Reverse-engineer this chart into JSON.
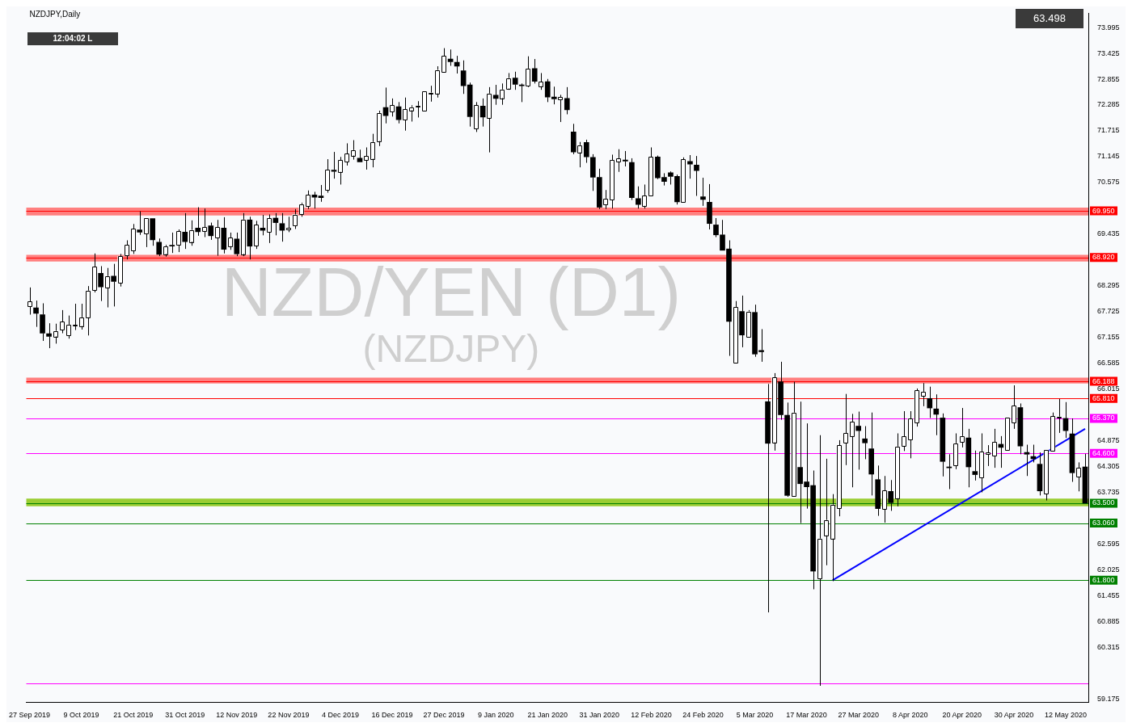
{
  "chart_data": {
    "type": "candlestick",
    "title": "NZD/YEN (D1)",
    "subtitle": "(NZDJPY)",
    "annotations": [
      "NZDJPY,Daily",
      "12:04:02 L",
      "63.498"
    ],
    "colors": [
      "#ffffff",
      "#000000",
      "#000000",
      "#000000",
      "#ffffff",
      "#ffffff",
      "#ffffff",
      "#ffffff",
      "#ffffff",
      "#ffffff",
      "#ffffff",
      "#000000",
      "#ffffff",
      "#000000",
      "#ffffff",
      "#ffffff",
      "#ffffff",
      "#000000",
      "#ffffff",
      "#000000",
      "#000000",
      "#ffffff",
      "#000000",
      "#ffffff",
      "#000000",
      "#ffffff",
      "#000000",
      "#ffffff",
      "#000000",
      "#ffffff",
      "#000000",
      "#ffffff",
      "#000000",
      "#ffffff",
      "#000000",
      "#ffffff",
      "#000000",
      "#ffffff",
      "#000000",
      "#000000",
      "#ffffff",
      "#ffffff",
      "#ffffff",
      "#ffffff",
      "#000000",
      "#000000",
      "#ffffff",
      "#000000",
      "#ffffff",
      "#ffffff",
      "#ffffff",
      "#000000",
      "#ffffff",
      "#ffffff",
      "#ffffff",
      "#000000",
      "#ffffff",
      "#000000",
      "#ffffff",
      "#ffffff",
      "#ffffff",
      "#ffffff",
      "#ffffff",
      "#ffffff",
      "#ffffff",
      "#000000",
      "#000000",
      "#000000",
      "#000000",
      "#ffffff",
      "#000000",
      "#ffffff",
      "#000000",
      "#ffffff",
      "#ffffff",
      "#000000",
      "#000000",
      "#ffffff",
      "#000000",
      "#ffffff",
      "#000000",
      "#000000",
      "#ffffff",
      "#000000",
      "#000000",
      "#ffffff",
      "#000000",
      "#000000",
      "#000000",
      "#ffffff",
      "#ffffff",
      "#ffffff",
      "#000000",
      "#000000",
      "#000000",
      "#ffffff",
      "#ffffff",
      "#000000",
      "#000000",
      "#000000",
      "#000000",
      "#ffffff",
      "#000000",
      "#000000",
      "#000000",
      "#000000",
      "#000000",
      "#000000",
      "#000000",
      "#ffffff",
      "#000000",
      "#ffffff",
      "#000000",
      "#000000",
      "#000000",
      "#ffffff",
      "#000000",
      "#000000",
      "#ffffff",
      "#000000",
      "#000000",
      "#000000",
      "#ffffff",
      "#ffffff",
      "#ffffff",
      "#ffffff",
      "#ffffff",
      "#ffffff",
      "#000000",
      "#000000",
      "#000000",
      "#000000",
      "#ffffff",
      "#000000",
      "#ffffff",
      "#ffffff",
      "#ffffff",
      "#ffffff",
      "#ffffff",
      "#000000",
      "#000000",
      "#000000",
      "#000000",
      "#ffffff",
      "#ffffff",
      "#000000",
      "#000000",
      "#ffffff",
      "#ffffff",
      "#ffffff",
      "#000000",
      "#ffffff",
      "#ffffff",
      "#000000",
      "#000000",
      "#000000",
      "#000000",
      "#ffffff",
      "#ffffff",
      "#ffffff",
      "#000000",
      "#000000",
      "#ffffff",
      "#000000"
    ],
    "categories": [
      "27 Sep 2019",
      null,
      null,
      null,
      null,
      null,
      null,
      null,
      "9 Oct 2019",
      null,
      null,
      null,
      null,
      null,
      null,
      null,
      "21 Oct 2019",
      null,
      null,
      null,
      null,
      null,
      null,
      null,
      "31 Oct 2019",
      null,
      null,
      null,
      null,
      null,
      null,
      null,
      "12 Nov 2019",
      null,
      null,
      null,
      null,
      null,
      null,
      null,
      "22 Nov 2019",
      null,
      null,
      null,
      null,
      null,
      null,
      null,
      "4 Dec 2019",
      null,
      null,
      null,
      null,
      null,
      null,
      null,
      "16 Dec 2019",
      null,
      null,
      null,
      null,
      null,
      null,
      null,
      "27 Dec 2019",
      null,
      null,
      null,
      null,
      null,
      null,
      null,
      "9 Jan 2020",
      null,
      null,
      null,
      null,
      null,
      null,
      null,
      "21 Jan 2020",
      null,
      null,
      null,
      null,
      null,
      null,
      null,
      "31 Jan 2020",
      null,
      null,
      null,
      null,
      null,
      null,
      null,
      "12 Feb 2020",
      null,
      null,
      null,
      null,
      null,
      null,
      null,
      "24 Feb 2020",
      null,
      null,
      null,
      null,
      null,
      null,
      null,
      "5 Mar 2020",
      null,
      null,
      null,
      null,
      null,
      null,
      null,
      "17 Mar 2020",
      null,
      null,
      null,
      null,
      null,
      null,
      null,
      "27 Mar 2020",
      null,
      null,
      null,
      null,
      null,
      null,
      null,
      "8 Apr 2020",
      null,
      null,
      null,
      null,
      null,
      null,
      null,
      "20 Apr 2020",
      null,
      null,
      null,
      null,
      null,
      null,
      null,
      "30 Apr 2020",
      null,
      null,
      null,
      null,
      null,
      null,
      null,
      "12 May 2020",
      null,
      null,
      null
    ],
    "ohlc": [
      [
        67.84,
        68.26,
        67.66,
        67.95
      ],
      [
        67.81,
        67.97,
        67.39,
        67.69
      ],
      [
        67.66,
        67.91,
        67.08,
        67.25
      ],
      [
        67.24,
        67.47,
        66.92,
        67.18
      ],
      [
        67.18,
        67.46,
        67.02,
        67.3
      ],
      [
        67.33,
        67.76,
        67.25,
        67.5
      ],
      [
        67.2,
        67.64,
        67.13,
        67.44
      ],
      [
        67.42,
        67.9,
        67.32,
        67.43
      ],
      [
        67.41,
        67.9,
        67.33,
        67.6
      ],
      [
        67.6,
        68.29,
        67.2,
        68.19
      ],
      [
        68.2,
        69.01,
        68.15,
        68.72
      ],
      [
        68.57,
        68.73,
        67.96,
        68.27
      ],
      [
        68.26,
        68.69,
        67.82,
        68.51
      ],
      [
        68.51,
        68.78,
        67.84,
        68.39
      ],
      [
        68.36,
        69.0,
        68.28,
        68.95
      ],
      [
        68.96,
        69.3,
        68.88,
        69.2
      ],
      [
        69.07,
        69.66,
        69.0,
        69.55
      ],
      [
        69.53,
        69.94,
        69.42,
        69.48
      ],
      [
        69.45,
        69.81,
        69.15,
        69.79
      ],
      [
        69.78,
        69.8,
        69.18,
        69.31
      ],
      [
        69.26,
        69.34,
        68.95,
        68.99
      ],
      [
        69.0,
        69.2,
        68.94,
        69.17
      ],
      [
        69.19,
        69.47,
        69.02,
        69.17
      ],
      [
        69.2,
        69.54,
        69.04,
        69.5
      ],
      [
        69.48,
        69.9,
        69.11,
        69.27
      ],
      [
        69.27,
        69.74,
        69.18,
        69.53
      ],
      [
        69.57,
        70.03,
        69.4,
        69.49
      ],
      [
        69.5,
        70.0,
        69.37,
        69.59
      ],
      [
        69.62,
        69.69,
        69.31,
        69.4
      ],
      [
        69.36,
        69.75,
        68.96,
        69.59
      ],
      [
        69.57,
        69.81,
        69.01,
        69.1
      ],
      [
        69.17,
        69.47,
        69.09,
        69.36
      ],
      [
        69.33,
        69.47,
        68.95,
        69.0
      ],
      [
        69.0,
        69.9,
        68.95,
        69.76
      ],
      [
        69.75,
        69.82,
        68.88,
        69.17
      ],
      [
        69.17,
        69.73,
        69.11,
        69.64
      ],
      [
        69.57,
        69.86,
        69.41,
        69.52
      ],
      [
        69.48,
        69.87,
        69.24,
        69.79
      ],
      [
        69.79,
        69.9,
        69.41,
        69.69
      ],
      [
        69.67,
        69.9,
        69.27,
        69.52
      ],
      [
        69.53,
        69.82,
        69.48,
        69.57
      ],
      [
        69.63,
        69.99,
        69.55,
        69.87
      ],
      [
        69.88,
        70.13,
        69.82,
        70.1
      ],
      [
        70.05,
        70.4,
        69.99,
        70.3
      ],
      [
        70.3,
        70.37,
        70.0,
        70.25
      ],
      [
        70.28,
        70.52,
        70.15,
        70.24
      ],
      [
        70.41,
        71.09,
        70.35,
        70.86
      ],
      [
        70.85,
        71.25,
        70.66,
        70.82
      ],
      [
        70.81,
        71.14,
        70.53,
        71.07
      ],
      [
        71.03,
        71.44,
        70.95,
        71.21
      ],
      [
        71.17,
        71.51,
        71.08,
        71.29
      ],
      [
        71.11,
        71.3,
        71.03,
        71.03
      ],
      [
        71.07,
        71.35,
        70.86,
        71.16
      ],
      [
        71.1,
        71.65,
        70.91,
        71.47
      ],
      [
        71.49,
        72.16,
        71.38,
        72.11
      ],
      [
        72.23,
        72.67,
        71.88,
        72.05
      ],
      [
        72.14,
        72.43,
        72.03,
        72.28
      ],
      [
        72.25,
        72.35,
        71.88,
        71.96
      ],
      [
        71.95,
        72.45,
        71.72,
        72.19
      ],
      [
        72.17,
        72.28,
        71.92,
        72.24
      ],
      [
        72.26,
        72.37,
        72.01,
        72.27
      ],
      [
        72.16,
        72.59,
        72.16,
        72.59
      ],
      [
        72.55,
        72.71,
        72.36,
        72.56
      ],
      [
        72.54,
        73.14,
        72.45,
        73.06
      ],
      [
        73.02,
        73.54,
        73.0,
        73.37
      ],
      [
        73.3,
        73.51,
        73.15,
        73.24
      ],
      [
        73.23,
        73.37,
        72.98,
        73.14
      ],
      [
        73.04,
        73.27,
        72.53,
        72.71
      ],
      [
        72.73,
        72.78,
        71.81,
        72.03
      ],
      [
        71.76,
        72.35,
        71.69,
        72.28
      ],
      [
        72.26,
        72.43,
        71.81,
        72.02
      ],
      [
        72.0,
        72.68,
        71.24,
        72.54
      ],
      [
        72.5,
        72.73,
        72.29,
        72.43
      ],
      [
        72.44,
        72.76,
        72.29,
        72.63
      ],
      [
        72.65,
        72.99,
        72.62,
        72.88
      ],
      [
        72.88,
        73.02,
        72.62,
        72.74
      ],
      [
        72.73,
        72.76,
        72.35,
        72.71
      ],
      [
        72.71,
        73.36,
        72.68,
        73.09
      ],
      [
        73.09,
        73.3,
        72.76,
        72.81
      ],
      [
        72.7,
        72.99,
        72.62,
        72.8
      ],
      [
        72.8,
        72.86,
        72.35,
        72.46
      ],
      [
        72.46,
        72.69,
        72.3,
        72.42
      ],
      [
        72.41,
        72.51,
        71.91,
        72.46
      ],
      [
        72.43,
        72.68,
        72.08,
        72.18
      ],
      [
        71.69,
        71.87,
        71.2,
        71.25
      ],
      [
        71.24,
        71.47,
        70.91,
        71.4
      ],
      [
        71.46,
        71.52,
        71.01,
        71.14
      ],
      [
        71.13,
        71.2,
        70.39,
        70.69
      ],
      [
        70.69,
        70.88,
        69.99,
        70.03
      ],
      [
        70.09,
        70.41,
        69.99,
        70.22
      ],
      [
        70.19,
        71.19,
        70.0,
        71.07
      ],
      [
        71.04,
        71.31,
        70.81,
        71.11
      ],
      [
        71.07,
        71.27,
        70.93,
        71.05
      ],
      [
        71.02,
        71.11,
        70.19,
        70.24
      ],
      [
        70.22,
        70.49,
        70.0,
        70.09
      ],
      [
        70.06,
        70.53,
        70.0,
        70.29
      ],
      [
        70.28,
        71.35,
        70.26,
        71.14
      ],
      [
        71.14,
        71.17,
        70.65,
        70.68
      ],
      [
        70.69,
        70.78,
        70.51,
        70.6
      ],
      [
        70.79,
        70.82,
        70.53,
        70.71
      ],
      [
        70.71,
        70.75,
        70.09,
        70.15
      ],
      [
        70.15,
        71.13,
        70.13,
        71.09
      ],
      [
        71.04,
        71.18,
        70.66,
        70.98
      ],
      [
        70.96,
        71.16,
        70.28,
        70.84
      ],
      [
        70.26,
        70.68,
        70.06,
        70.2
      ],
      [
        70.14,
        70.54,
        69.54,
        69.67
      ],
      [
        69.64,
        69.79,
        69.37,
        69.42
      ],
      [
        69.42,
        69.75,
        69.08,
        69.08
      ],
      [
        69.11,
        69.3,
        66.75,
        67.51
      ],
      [
        66.6,
        67.96,
        66.58,
        67.83
      ],
      [
        67.73,
        68.08,
        66.94,
        67.21
      ],
      [
        67.18,
        67.76,
        67.17,
        67.73
      ],
      [
        67.71,
        67.88,
        66.73,
        66.79
      ],
      [
        66.87,
        67.34,
        66.62,
        66.84
      ],
      [
        65.74,
        66.13,
        61.09,
        64.82
      ],
      [
        64.84,
        66.37,
        64.66,
        66.28
      ],
      [
        66.18,
        66.62,
        65.34,
        65.45
      ],
      [
        65.44,
        65.72,
        63.64,
        63.67
      ],
      [
        63.66,
        66.18,
        63.64,
        65.5
      ],
      [
        64.29,
        65.74,
        63.06,
        63.93
      ],
      [
        63.97,
        65.26,
        63.38,
        63.86
      ],
      [
        63.89,
        64.22,
        61.6,
        62.0
      ],
      [
        61.84,
        65.0,
        59.47,
        62.72
      ],
      [
        62.79,
        64.48,
        62.13,
        63.13
      ],
      [
        62.72,
        63.7,
        61.78,
        63.47
      ],
      [
        63.39,
        64.89,
        63.21,
        64.78
      ],
      [
        64.82,
        65.91,
        64.34,
        65.04
      ],
      [
        64.98,
        65.47,
        63.85,
        65.3
      ],
      [
        65.2,
        65.52,
        64.24,
        65.1
      ],
      [
        64.92,
        65.2,
        64.47,
        64.83
      ],
      [
        64.7,
        65.5,
        63.67,
        64.14
      ],
      [
        64.02,
        64.33,
        63.22,
        63.38
      ],
      [
        63.37,
        64.1,
        63.07,
        63.78
      ],
      [
        63.76,
        64.01,
        63.33,
        63.51
      ],
      [
        63.61,
        65.04,
        63.43,
        64.75
      ],
      [
        64.75,
        65.53,
        64.65,
        64.97
      ],
      [
        64.9,
        65.53,
        64.49,
        65.37
      ],
      [
        65.28,
        66.03,
        65.19,
        65.99
      ],
      [
        65.87,
        66.15,
        65.64,
        65.96
      ],
      [
        65.81,
        66.07,
        65.38,
        65.6
      ],
      [
        65.58,
        65.9,
        65.0,
        65.46
      ],
      [
        65.38,
        65.48,
        64.09,
        64.42
      ],
      [
        64.3,
        64.58,
        63.81,
        64.28
      ],
      [
        64.33,
        65.04,
        64.25,
        64.82
      ],
      [
        64.85,
        65.6,
        64.73,
        64.98
      ],
      [
        64.94,
        65.14,
        63.85,
        64.3
      ],
      [
        64.2,
        64.66,
        64.0,
        64.13
      ],
      [
        64.06,
        65.04,
        63.74,
        64.63
      ],
      [
        64.58,
        64.78,
        64.32,
        64.62
      ],
      [
        64.54,
        65.14,
        64.28,
        64.85
      ],
      [
        64.8,
        64.98,
        64.28,
        64.73
      ],
      [
        64.67,
        65.39,
        64.65,
        65.38
      ],
      [
        65.28,
        66.1,
        65.14,
        65.65
      ],
      [
        65.61,
        65.7,
        64.58,
        64.76
      ],
      [
        64.62,
        64.79,
        64.1,
        64.58
      ],
      [
        64.53,
        64.79,
        64.4,
        64.48
      ],
      [
        64.36,
        64.62,
        63.67,
        63.77
      ],
      [
        63.71,
        64.68,
        63.56,
        64.68
      ],
      [
        64.66,
        65.5,
        64.65,
        65.42
      ],
      [
        65.39,
        65.8,
        65.05,
        65.41
      ],
      [
        65.37,
        65.73,
        64.94,
        65.1
      ],
      [
        65.03,
        65.37,
        63.97,
        64.17
      ],
      [
        64.08,
        64.4,
        63.76,
        64.28
      ],
      [
        64.3,
        64.59,
        63.48,
        63.5
      ]
    ],
    "series": [
      {
        "type": "line",
        "color": "#0000ff",
        "values": [
          null,
          null,
          null,
          null,
          null,
          null,
          null,
          null,
          null,
          null,
          null,
          null,
          null,
          null,
          null,
          null,
          null,
          null,
          null,
          null,
          null,
          null,
          null,
          null,
          null,
          null,
          null,
          null,
          null,
          null,
          null,
          null,
          null,
          null,
          null,
          null,
          null,
          null,
          null,
          null,
          null,
          null,
          null,
          null,
          null,
          null,
          null,
          null,
          null,
          null,
          null,
          null,
          null,
          null,
          null,
          null,
          null,
          null,
          null,
          null,
          null,
          null,
          null,
          null,
          null,
          null,
          null,
          null,
          null,
          null,
          null,
          null,
          null,
          null,
          null,
          null,
          null,
          null,
          null,
          null,
          null,
          null,
          null,
          null,
          null,
          null,
          null,
          null,
          null,
          null,
          null,
          null,
          null,
          null,
          null,
          null,
          null,
          null,
          null,
          null,
          null,
          null,
          null,
          null,
          null,
          null,
          null,
          null,
          null,
          null,
          null,
          null,
          null,
          null,
          null,
          null,
          null,
          null,
          null,
          null,
          null,
          null,
          null,
          null,
          61.8,
          null,
          null,
          null,
          null,
          null,
          null,
          null,
          null,
          null,
          null,
          null,
          null,
          null,
          null,
          null,
          null,
          null,
          null,
          null,
          null,
          null,
          null,
          null,
          null,
          null,
          null,
          null,
          null,
          null,
          null,
          null,
          null,
          null,
          null,
          null,
          null,
          null,
          null,
          65.14
        ]
      }
    ],
    "ylim": [
      59.11,
      74.31
    ],
    "yticks": [
      73.995,
      73.425,
      72.855,
      72.285,
      71.715,
      71.145,
      70.575,
      69.435,
      68.295,
      67.725,
      67.155,
      66.585,
      66.015,
      64.875,
      64.305,
      63.735,
      62.595,
      62.025,
      61.455,
      60.885,
      60.315,
      59.175
    ],
    "ref_lines": [
      {
        "axis": "y",
        "value": 69.95,
        "label": "69.950",
        "color": "#ff0000"
      },
      {
        "axis": "y",
        "value": 68.92,
        "label": "68.920",
        "color": "#ff0000"
      },
      {
        "axis": "y",
        "value": 66.188,
        "label": "66.188",
        "color": "#ff0000"
      },
      {
        "axis": "y",
        "value": 65.81,
        "label": "65.810",
        "color": "#ff0000"
      },
      {
        "axis": "y",
        "value": 65.37,
        "label": "65.370",
        "color": "#ff00ff"
      },
      {
        "axis": "y",
        "value": 64.6,
        "label": "64.600",
        "color": "#ff00ff"
      },
      {
        "axis": "y",
        "value": 63.5,
        "label": "63.500",
        "color": "#008000"
      },
      {
        "axis": "y",
        "value": 63.06,
        "label": "63.060",
        "color": "#008000"
      },
      {
        "axis": "y",
        "value": 61.8,
        "label": "61.800",
        "color": "#008000"
      },
      {
        "axis": "y",
        "value": 59.52,
        "label": null,
        "color": "#ff00ff"
      }
    ],
    "bands": [
      {
        "axis": "y",
        "from": 69.85,
        "to": 70.02,
        "label": null,
        "color": "#ff7f7f"
      },
      {
        "axis": "y",
        "from": 68.83,
        "to": 68.98,
        "label": null,
        "color": "#ff7f7f"
      },
      {
        "axis": "y",
        "from": 66.14,
        "to": 66.27,
        "label": null,
        "color": "#ff7f7f"
      },
      {
        "axis": "y",
        "from": 63.43,
        "to": 63.6,
        "label": null,
        "color": "#9acd32"
      }
    ]
  }
}
